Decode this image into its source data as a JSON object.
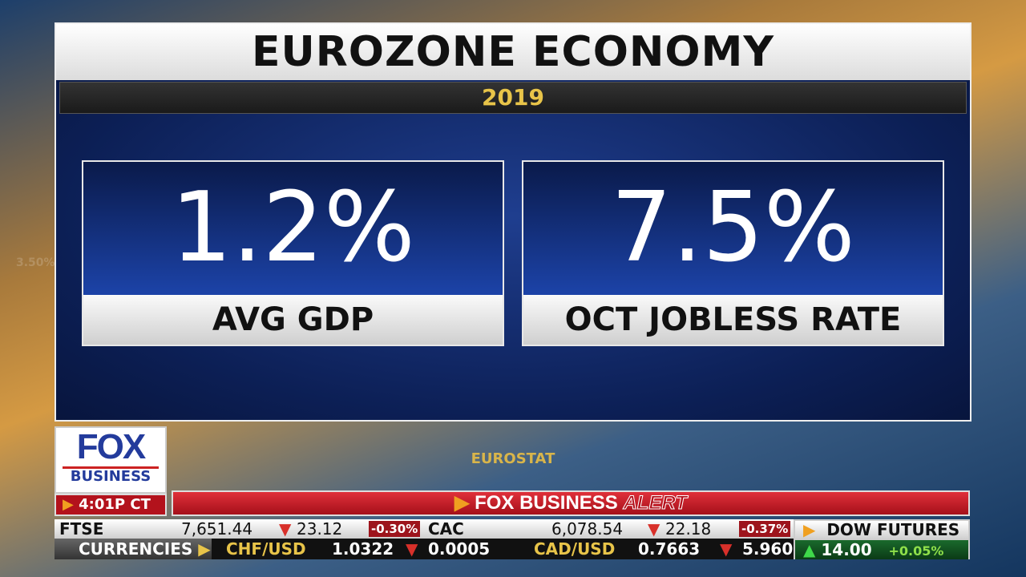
{
  "graphic": {
    "title": "EUROZONE ECONOMY",
    "year": "2019",
    "stats": [
      {
        "value": "1.2%",
        "label": "AVG GDP"
      },
      {
        "value": "7.5%",
        "label": "OCT JOBLESS RATE"
      }
    ],
    "source": "EUROSTAT"
  },
  "network": {
    "logo_text": "FOX BUSINESS",
    "time": "4:01P CT",
    "alert": "FOX BUSINESS",
    "alert_tag": "ALERT"
  },
  "ticker": {
    "ftse": {
      "name": "FTSE",
      "value": "7,651.44",
      "change": "23.12",
      "pct": "-0.30%"
    },
    "cac": {
      "name": "CAC",
      "value": "6,078.54",
      "change": "22.18",
      "pct": "-0.37%"
    },
    "currencies_label": "CURRENCIES",
    "chf": {
      "name": "CHF/USD",
      "value": "1.0322",
      "change": "0.0005"
    },
    "cad": {
      "name": "CAD/USD",
      "value": "0.7663",
      "change": "5.960"
    },
    "dow": {
      "name": "DOW FUTURES",
      "change": "14.00",
      "pct": "+0.05%"
    }
  },
  "colors": {
    "accent_red": "#b3121c",
    "gold": "#e8c449",
    "blue": "#1c43a8",
    "up_green": "#3fd94a"
  }
}
